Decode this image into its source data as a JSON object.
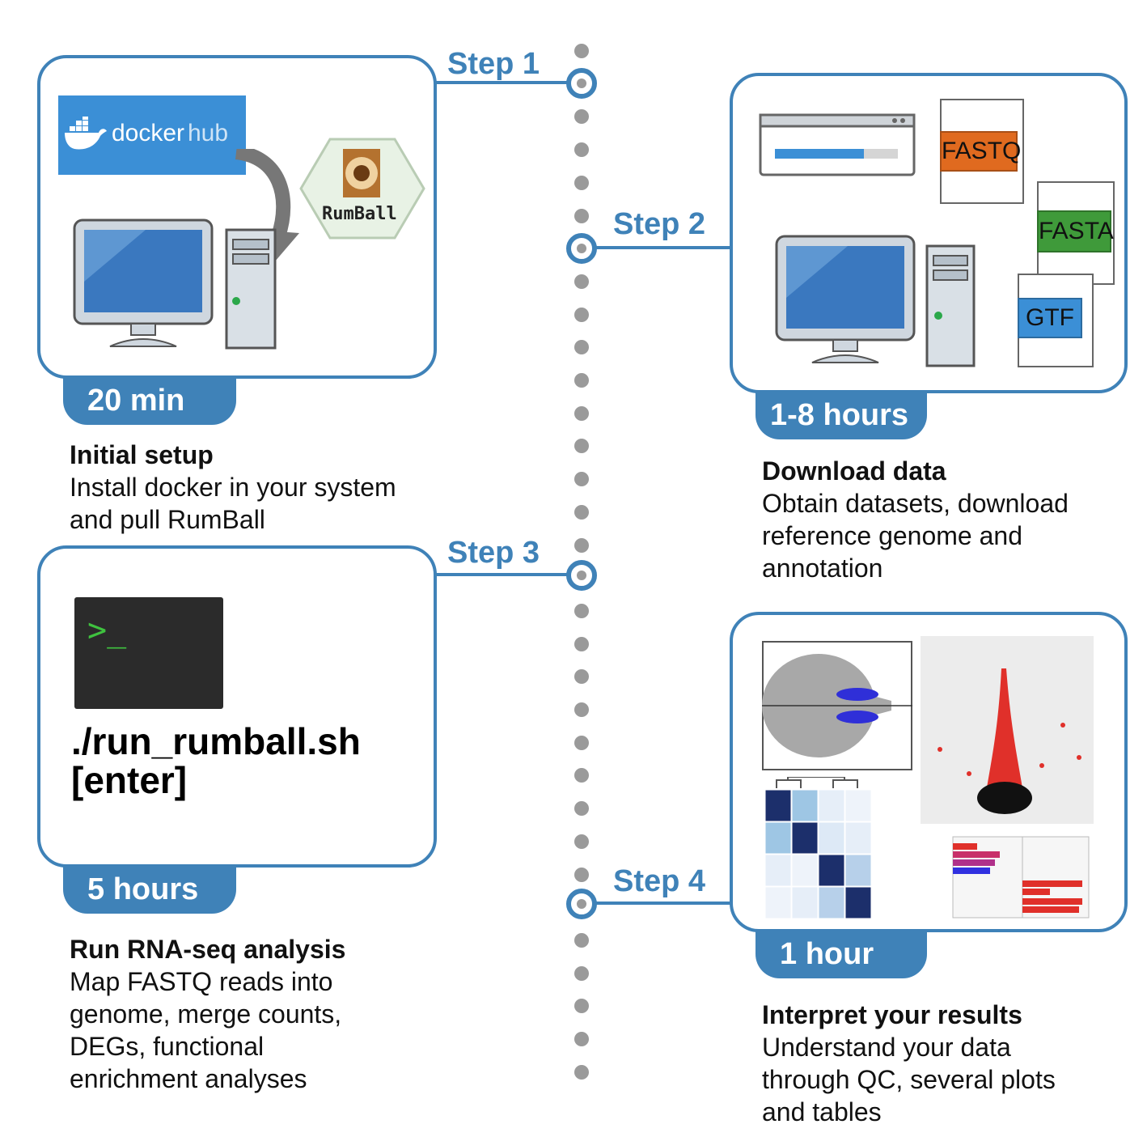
{
  "steps": [
    {
      "label": "Step 1",
      "time": "20 min",
      "title": "Initial setup",
      "body": "Install docker in your system\nand pull RumBall"
    },
    {
      "label": "Step 2",
      "time": "1-8 hours",
      "title": "Download data",
      "body": "Obtain datasets, download\nreference genome and\nannotation"
    },
    {
      "label": "Step 3",
      "time": "5 hours",
      "title": "Run RNA-seq analysis",
      "body": "Map FASTQ reads into\ngenome, merge counts,\nDEGs, functional\nenrichment analyses"
    },
    {
      "label": "Step 4",
      "time": "1 hour",
      "title": "Interpret your results",
      "body": "Understand your data\nthrough QC, several plots\nand tables"
    }
  ],
  "dockerhub": {
    "docker": "docker",
    "hub": "hub"
  },
  "rumball_logo": "RumBall",
  "terminal": {
    "prompt": ">_",
    "command_line1": "./run_rumball.sh",
    "command_line2": "[enter]"
  },
  "files": {
    "fastq": "FASTQ",
    "fasta": "FASTA",
    "gtf": "GTF"
  },
  "colors": {
    "accent": "#3f82b8",
    "fastq": "#e06a1f",
    "fasta": "#3f9a3a",
    "gtf": "#3b8fd6",
    "dockerhub": "#3b8fd6"
  }
}
